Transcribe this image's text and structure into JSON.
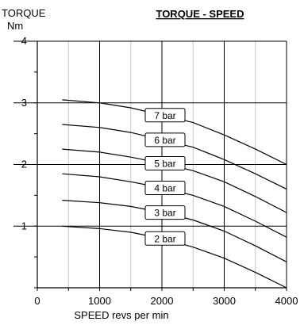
{
  "chart_data": {
    "type": "line",
    "title": "TORQUE - SPEED",
    "ylabel_line1": "TORQUE",
    "ylabel_line2": "Nm",
    "xlabel": "SPEED revs per min",
    "xlim": [
      0,
      4000
    ],
    "ylim": [
      0,
      4
    ],
    "x_major_ticks": [
      "0",
      "1000",
      "2000",
      "3000",
      "4000"
    ],
    "y_major_ticks": [
      "1",
      "2",
      "3",
      "4"
    ],
    "grid": true,
    "series": [
      {
        "name": "7 bar",
        "x": [
          400,
          1000,
          1500,
          2000,
          2500,
          3000,
          3500,
          4000
        ],
        "y": [
          3.05,
          3.0,
          2.92,
          2.8,
          2.68,
          2.48,
          2.25,
          2.0
        ]
      },
      {
        "name": "6 bar",
        "x": [
          400,
          1000,
          1500,
          2000,
          2500,
          3000,
          3500,
          4000
        ],
        "y": [
          2.65,
          2.6,
          2.52,
          2.4,
          2.28,
          2.08,
          1.85,
          1.6
        ]
      },
      {
        "name": "5 bar",
        "x": [
          400,
          1000,
          1500,
          2000,
          2500,
          3000,
          3500,
          4000
        ],
        "y": [
          2.25,
          2.2,
          2.12,
          2.02,
          1.9,
          1.72,
          1.48,
          1.22
        ]
      },
      {
        "name": "4 bar",
        "x": [
          400,
          1000,
          1500,
          2000,
          2500,
          3000,
          3500,
          4000
        ],
        "y": [
          1.85,
          1.8,
          1.72,
          1.62,
          1.5,
          1.32,
          1.08,
          0.82
        ]
      },
      {
        "name": "3 bar",
        "x": [
          400,
          1000,
          1500,
          2000,
          2500,
          3000,
          3500,
          4000
        ],
        "y": [
          1.42,
          1.38,
          1.32,
          1.22,
          1.1,
          0.92,
          0.68,
          0.42
        ]
      },
      {
        "name": "2 bar",
        "x": [
          400,
          1000,
          1500,
          2000,
          2500,
          3000,
          3500,
          4000
        ],
        "y": [
          1.0,
          0.96,
          0.9,
          0.8,
          0.66,
          0.48,
          0.25,
          0.0
        ]
      }
    ]
  }
}
